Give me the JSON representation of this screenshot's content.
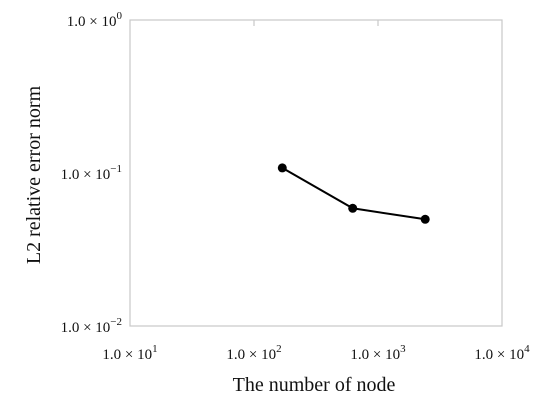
{
  "chart_data": {
    "type": "line",
    "title": "",
    "xlabel": "The number of node",
    "ylabel": "L2 relative error norm",
    "x_scale": "log",
    "y_scale": "log",
    "xlim": [
      10,
      10000
    ],
    "ylim": [
      0.01,
      1
    ],
    "grid": false,
    "x_ticks": [
      {
        "value": 10,
        "label": "1.0 × 10",
        "exp": "1"
      },
      {
        "value": 100,
        "label": "1.0 × 10",
        "exp": "2"
      },
      {
        "value": 1000,
        "label": "1.0 × 10",
        "exp": "3"
      },
      {
        "value": 10000,
        "label": "1.0 × 10",
        "exp": "4"
      }
    ],
    "y_ticks": [
      {
        "value": 1,
        "label": "1.0 × 10",
        "exp": "0"
      },
      {
        "value": 0.1,
        "label": "1.0 × 10",
        "exp": "−1"
      },
      {
        "value": 0.01,
        "label": "1.0 × 10",
        "exp": "−2"
      }
    ],
    "series": [
      {
        "x": [
          169,
          625,
          2401
        ],
        "y": [
          0.108,
          0.0588,
          0.0498
        ]
      }
    ],
    "colors": {
      "frame": "#c8c8c8",
      "series": "#000000",
      "text": "#111111"
    }
  }
}
